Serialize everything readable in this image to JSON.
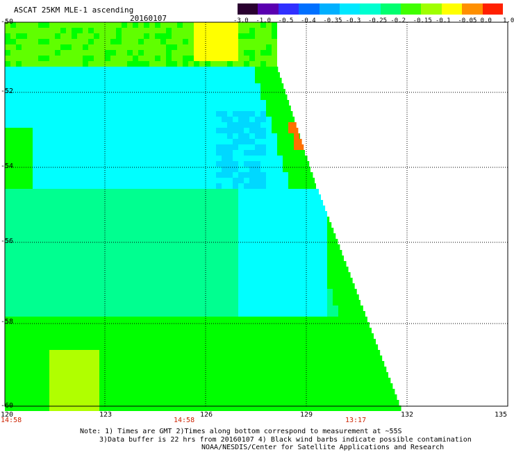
{
  "header": {
    "title": "ASCAT 25KM MLE-1 ascending",
    "date": "20160107"
  },
  "colorbar": {
    "labels": [
      "-3.0",
      "-1.0",
      "-0.5",
      "-0.4",
      "-0.35",
      "-0.3",
      "-0.25",
      "-0.2",
      "-0.15",
      "-0.1",
      "-0.05",
      "0.0",
      "1.0"
    ],
    "colors": [
      "#2a0030",
      "#5a00b0",
      "#3030ff",
      "#0070ff",
      "#00b0ff",
      "#00e8ff",
      "#00ffd0",
      "#00ff70",
      "#40ff00",
      "#a0ff00",
      "#ffff00",
      "#ff9000",
      "#ff2000"
    ]
  },
  "map": {
    "lon_labels": [
      "120",
      "123",
      "126",
      "129",
      "132",
      "135"
    ],
    "lat_labels": [
      "-50",
      "-52",
      "-54",
      "-56",
      "-58",
      "-60"
    ],
    "time_labels": [
      "14:58",
      "14:58",
      "13:17"
    ],
    "palette": {
      "cyan": "#00ffff",
      "aqua": "#00f0e8",
      "teal_green": "#00ff90",
      "green": "#00ff00",
      "lime": "#60ff00",
      "yellow_green": "#b0ff00",
      "yellow": "#ffff00",
      "orange": "#ff7000",
      "deep_cyan": "#00d8ff"
    }
  },
  "notes": {
    "line1": "Note: 1) Times are GMT 2)Times along bottom correspond to measurement at ~55S",
    "line2": "3)Data buffer is 22 hrs from 20160107 4) Black wind barbs indicate possible contamination",
    "line3": "NOAA/NESDIS/Center for Satellite Applications and Research"
  }
}
